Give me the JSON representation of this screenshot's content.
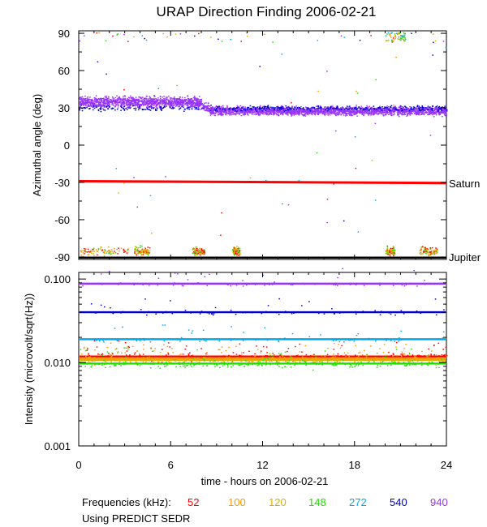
{
  "chart_data": {
    "type": "scatter",
    "title": "URAP Direction Finding  2006-02-21",
    "xlabel": "time - hours on 2006-02-21",
    "x_ticks": [
      "0",
      "6",
      "12",
      "18",
      "24"
    ],
    "xlim": [
      0,
      24
    ],
    "legend_title": "Frequencies (kHz):",
    "note": "Using PREDICT SEDR",
    "frequencies": [
      {
        "name": "52",
        "color": "#ff0000"
      },
      {
        "name": "100",
        "color": "#ff9900"
      },
      {
        "name": "120",
        "color": "#d8b000"
      },
      {
        "name": "148",
        "color": "#22dd00"
      },
      {
        "name": "272",
        "color": "#00a8f0"
      },
      {
        "name": "540",
        "color": "#0000cc"
      },
      {
        "name": "940",
        "color": "#9933ff"
      }
    ],
    "panels": [
      {
        "name": "azimuth",
        "ylabel": "Azimuthal angle (deg)",
        "ylim": [
          -92,
          92
        ],
        "y_ticks": [
          90,
          60,
          30,
          0,
          -30,
          -60,
          -90
        ],
        "y_tick_labels": [
          "90",
          "60",
          "30",
          "0",
          "-30",
          "-60",
          "-90"
        ],
        "reference_lines": [
          {
            "label": "Saturn",
            "value_start": -29,
            "value_end": -30.5,
            "color": "#ff0000"
          },
          {
            "label": "Jupiter",
            "value": -90.5,
            "color": "#000000"
          }
        ],
        "bands": [
          {
            "frequency": "940",
            "segments": [
              {
                "x": [
                  0,
                  8
                ],
                "y": 35,
                "spread": 6
              },
              {
                "x": [
                  8.5,
                  24
                ],
                "y": 28,
                "spread": 5
              }
            ]
          },
          {
            "frequency": "540",
            "segments": [
              {
                "x": [
                  0,
                  24
                ],
                "y": 30,
                "spread": 3
              }
            ]
          }
        ]
      },
      {
        "name": "intensity",
        "ylabel": "Intensity (microvolt/sqrt(Hz))",
        "scale": "log",
        "ylim": [
          0.001,
          0.12
        ],
        "y_ticks": [
          0.1,
          0.01,
          0.001
        ],
        "y_tick_labels": [
          "0.100",
          "0.010",
          "0.001"
        ],
        "series": [
          {
            "frequency": "940",
            "value": 0.088
          },
          {
            "frequency": "540",
            "value": 0.04
          },
          {
            "frequency": "272",
            "value": 0.019
          },
          {
            "frequency": "52",
            "value": 0.0118
          },
          {
            "frequency": "100",
            "value": 0.0112
          },
          {
            "frequency": "120",
            "value": 0.0107
          },
          {
            "frequency": "148",
            "value": 0.0097
          }
        ]
      }
    ]
  }
}
